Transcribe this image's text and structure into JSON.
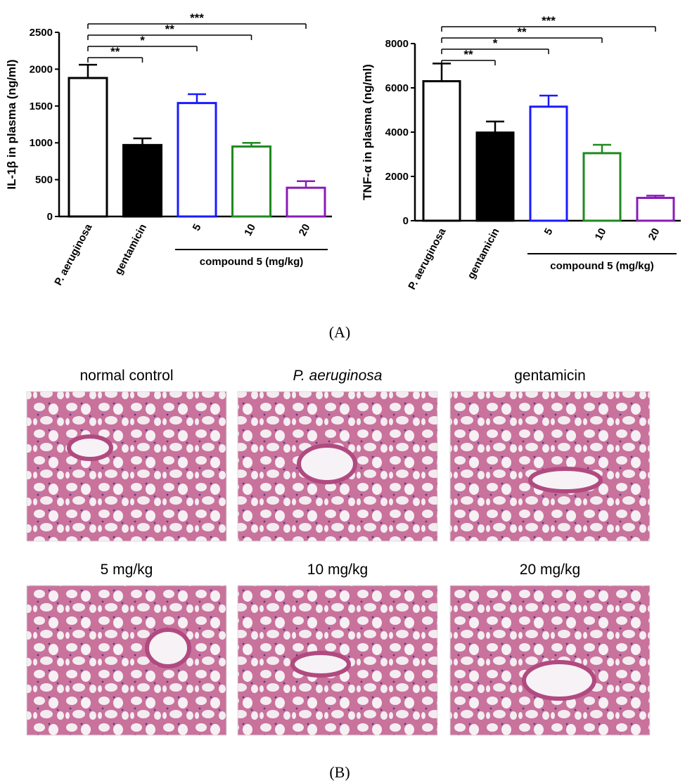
{
  "chart_data": [
    {
      "type": "bar",
      "ylabel": "IL-1β in plasma (ng/ml)",
      "categories": [
        "P. aeruginosa",
        "gentamicin",
        "5",
        "10",
        "20"
      ],
      "values": [
        1880,
        970,
        1540,
        950,
        390
      ],
      "errors": [
        180,
        90,
        120,
        50,
        90
      ],
      "colors": [
        "#000000",
        "#000000",
        "#1a1aff",
        "#1f8a1f",
        "#8a1ab8"
      ],
      "fills": [
        "#ffffff",
        "#000000",
        "#ffffff",
        "#ffffff",
        "#ffffff"
      ],
      "significance": [
        null,
        "**",
        "*",
        "**",
        "***"
      ],
      "group": {
        "label": "compound 5 (mg/kg)",
        "categories": [
          "5",
          "10",
          "20"
        ]
      },
      "ylim": [
        0,
        2500
      ],
      "yticks": [
        0,
        500,
        1000,
        1500,
        2000,
        2500
      ]
    },
    {
      "type": "bar",
      "ylabel": "TNF-α in plasma (ng/ml)",
      "categories": [
        "P. aeruginosa",
        "gentamicin",
        "5",
        "10",
        "20"
      ],
      "values": [
        6300,
        3980,
        5150,
        3050,
        1030
      ],
      "errors": [
        800,
        500,
        500,
        380,
        100
      ],
      "colors": [
        "#000000",
        "#000000",
        "#1a1aff",
        "#1f8a1f",
        "#8a1ab8"
      ],
      "fills": [
        "#ffffff",
        "#000000",
        "#ffffff",
        "#ffffff",
        "#ffffff"
      ],
      "significance": [
        null,
        "**",
        "*",
        "**",
        "***"
      ],
      "group": {
        "label": "compound 5 (mg/kg)",
        "categories": [
          "5",
          "10",
          "20"
        ]
      },
      "ylim": [
        0,
        8000
      ],
      "yticks": [
        0,
        2000,
        4000,
        6000,
        8000
      ]
    }
  ],
  "figure": {
    "panel_a": "(A)",
    "panel_b": "(B)",
    "micrographs": [
      "normal control",
      "P. aeruginosa",
      "gentamicin",
      "5 mg/kg",
      "10 mg/kg",
      "20 mg/kg"
    ]
  }
}
